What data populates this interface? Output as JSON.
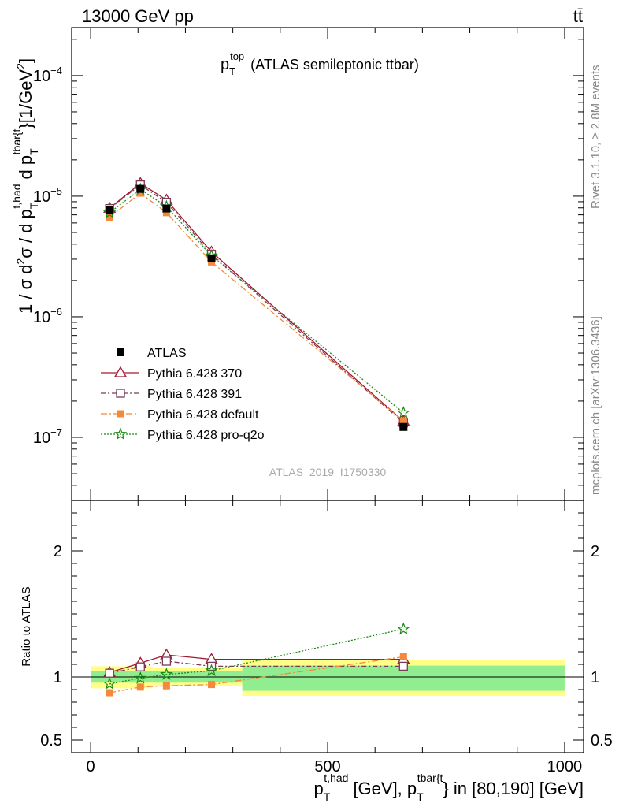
{
  "header": {
    "left": "13000 GeV pp",
    "right": "tt̄"
  },
  "side_labels": {
    "rivet": "Rivet 3.1.10, ≥ 2.8M events",
    "mcplots": "mcplots.cern.ch [arXiv:1306.3436]"
  },
  "chart_data": {
    "type": "line",
    "title_main": "p",
    "title_sub": "T",
    "title_sup": "top",
    "title_rest": "(ATLAS semileptonic ttbar)",
    "watermark": "ATLAS_2019_I1750330",
    "xlabel": {
      "p1": "p",
      "p1_sub": "T",
      "p1_sup": "t,had",
      "mid": "[GeV], p",
      "p2_sub": "T",
      "p2_sup": "tbar{t",
      "end": "} in [80,190] [GeV]"
    },
    "ylabel": {
      "a": "1 / σ d",
      "a_sup": "2",
      "b": "σ / d p",
      "b_sub": "T",
      "b_sup": "t,had",
      "c": "d p",
      "c_sub": "T",
      "c_sup": "tbar{t",
      "d": "}[1/GeV",
      "d_sup": "2",
      "e": "]"
    },
    "ratio_ylabel": "Ratio to ATLAS",
    "xlim": [
      -40,
      1040
    ],
    "ylim": [
      3e-08,
      0.00025
    ],
    "ylog": true,
    "ratio_ylim": [
      0.4,
      2.4
    ],
    "x_ticks": [
      "0",
      "500",
      "1000"
    ],
    "x_tick_values": [
      0,
      500,
      1000
    ],
    "y_ticks": [
      {
        "value": 1e-07,
        "base": "10",
        "exp": "−7"
      },
      {
        "value": 1e-06,
        "base": "10",
        "exp": "−6"
      },
      {
        "value": 1e-05,
        "base": "10",
        "exp": "−5"
      },
      {
        "value": 0.0001,
        "base": "10",
        "exp": "−4"
      }
    ],
    "ratio_ticks": [
      "0.5",
      "1",
      "2"
    ],
    "ratio_tick_values": [
      0.5,
      1,
      2
    ],
    "bins": [
      {
        "lo": 0,
        "hi": 80,
        "x": 40
      },
      {
        "lo": 80,
        "hi": 130,
        "x": 105
      },
      {
        "lo": 130,
        "hi": 190,
        "x": 160
      },
      {
        "lo": 190,
        "hi": 320,
        "x": 255
      },
      {
        "lo": 320,
        "hi": 1000,
        "x": 660
      }
    ],
    "data": {
      "name": "ATLAS",
      "values": [
        7.7e-06,
        1.15e-05,
        7.9e-06,
        3.05e-06,
        1.22e-07
      ],
      "band_inner": [
        [
          0.955,
          1.045
        ],
        [
          0.955,
          1.045
        ],
        [
          0.955,
          1.045
        ],
        [
          0.955,
          1.045
        ],
        [
          0.89,
          1.09
        ]
      ],
      "band_outer": [
        [
          0.91,
          1.085
        ],
        [
          0.91,
          1.085
        ],
        [
          0.93,
          1.07
        ],
        [
          0.93,
          1.07
        ],
        [
          0.85,
          1.135
        ]
      ]
    },
    "series": [
      {
        "name": "Pythia 6.428 370",
        "color": "#a01830",
        "marker": "triangle-open",
        "dash": "",
        "values": [
          7.95e-06,
          1.28e-05,
          9.3e-06,
          3.45e-06,
          1.36e-07
        ],
        "ratio": [
          1.035,
          1.11,
          1.175,
          1.14,
          1.14
        ]
      },
      {
        "name": "Pythia 6.428 391",
        "color": "#7a3a58",
        "marker": "square-open",
        "dash": "6 3 2 3",
        "values": [
          7.9e-06,
          1.24e-05,
          8.9e-06,
          3.3e-06,
          1.32e-07
        ],
        "ratio": [
          1.03,
          1.08,
          1.125,
          1.085,
          1.085
        ]
      },
      {
        "name": "Pythia 6.428 default",
        "color": "#f5883a",
        "marker": "square-filled",
        "dash": "8 3 2 3",
        "values": [
          6.7e-06,
          1.06e-05,
          7.3e-06,
          2.85e-06,
          1.37e-07
        ],
        "ratio": [
          0.875,
          0.92,
          0.93,
          0.94,
          1.16
        ]
      },
      {
        "name": "Pythia 6.428 pro-q2o",
        "color": "#1a8a10",
        "marker": "star-open",
        "dash": "2 2",
        "values": [
          7.3e-06,
          1.14e-05,
          8.2e-06,
          3.2e-06,
          1.6e-07
        ],
        "ratio": [
          0.945,
          0.99,
          1.02,
          1.05,
          1.38
        ]
      }
    ],
    "legend": {
      "placement": "lower-left",
      "entries": [
        "ATLAS",
        "Pythia 6.428 370",
        "Pythia 6.428 391",
        "Pythia 6.428 default",
        "Pythia 6.428 pro-q2o"
      ]
    }
  }
}
